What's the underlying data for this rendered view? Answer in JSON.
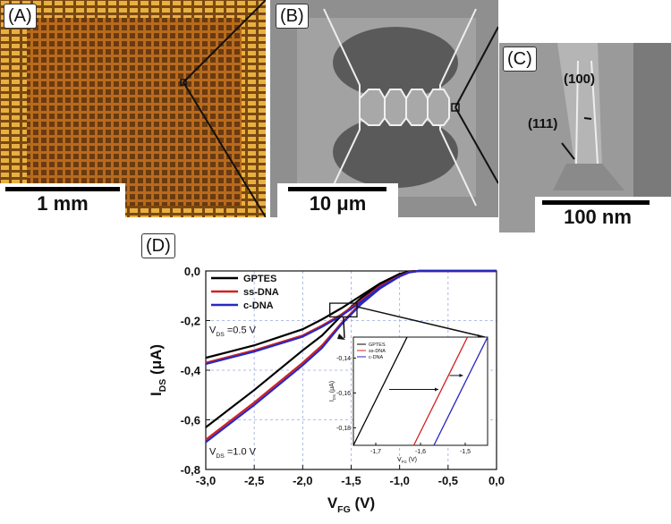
{
  "panels": {
    "a": {
      "label": "(A)",
      "scale": "1 mm"
    },
    "b": {
      "label": "(B)",
      "scale": "10 μm"
    },
    "c": {
      "label": "(C)",
      "scale": "100 nm",
      "facet1": "(100)",
      "facet2": "(111)"
    },
    "d": {
      "label": "(D)"
    }
  },
  "chart_data": [
    {
      "type": "line",
      "xlabel_main": "V",
      "xlabel_sub": "FG",
      "xlabel_unit": " (V)",
      "ylabel_main": "I",
      "ylabel_sub": "DS",
      "ylabel_unit": " (μA)",
      "xlim": [
        -3.0,
        0.0
      ],
      "ylim": [
        -0.8,
        0.0
      ],
      "xticks": [
        "-3,0",
        "-2,5",
        "-2,0",
        "-1,5",
        "-1,0",
        "-0,5",
        "0,0"
      ],
      "yticks": [
        "0,0",
        "-0,2",
        "-0,4",
        "-0,6",
        "-0,8"
      ],
      "grid": true,
      "legend": "top-left",
      "annotations": [
        {
          "text_main": "V",
          "text_sub": "DS",
          "text_rest": " =0.5 V"
        },
        {
          "text_main": "V",
          "text_sub": "DS",
          "text_rest": " =1.0 V"
        }
      ],
      "series": [
        {
          "name": "GPTES",
          "color": "#000000",
          "x": [
            -3.0,
            -2.5,
            -2.0,
            -1.8,
            -1.6,
            -1.4,
            -1.2,
            -1.0,
            -0.9,
            -0.8,
            0.0
          ],
          "curves": {
            "0.5V": [
              -0.35,
              -0.3,
              -0.235,
              -0.195,
              -0.15,
              -0.1,
              -0.05,
              -0.012,
              -0.002,
              0.0,
              0.0
            ],
            "1.0V": [
              -0.63,
              -0.48,
              -0.32,
              -0.26,
              -0.18,
              -0.11,
              -0.055,
              -0.013,
              -0.002,
              0.0,
              0.0
            ]
          }
        },
        {
          "name": "ss-DNA",
          "color": "#d42020",
          "x": [
            -3.0,
            -2.5,
            -2.0,
            -1.8,
            -1.6,
            -1.4,
            -1.2,
            -1.0,
            -0.9,
            -0.8,
            0.0
          ],
          "curves": {
            "0.5V": [
              -0.37,
              -0.32,
              -0.26,
              -0.22,
              -0.175,
              -0.12,
              -0.06,
              -0.02,
              -0.005,
              0.0,
              0.0
            ],
            "1.0V": [
              -0.68,
              -0.53,
              -0.37,
              -0.3,
              -0.21,
              -0.13,
              -0.065,
              -0.02,
              -0.004,
              0.0,
              0.0
            ]
          }
        },
        {
          "name": "c-DNA",
          "color": "#2828c0",
          "x": [
            -3.0,
            -2.5,
            -2.0,
            -1.8,
            -1.6,
            -1.4,
            -1.2,
            -1.0,
            -0.9,
            -0.8,
            0.0
          ],
          "curves": {
            "0.5V": [
              -0.375,
              -0.325,
              -0.265,
              -0.225,
              -0.18,
              -0.125,
              -0.065,
              -0.022,
              -0.006,
              0.0,
              0.0
            ],
            "1.0V": [
              -0.69,
              -0.54,
              -0.38,
              -0.31,
              -0.215,
              -0.135,
              -0.07,
              -0.022,
              -0.005,
              0.0,
              0.0
            ]
          }
        }
      ]
    },
    {
      "type": "line",
      "xlabel_main": "V",
      "xlabel_sub": "FG",
      "xlabel_unit": " (V)",
      "ylabel_main": "I",
      "ylabel_sub": "DS",
      "ylabel_unit": " (μA)",
      "xlim": [
        -1.75,
        -1.45
      ],
      "ylim": [
        -0.19,
        -0.128
      ],
      "xticks": [
        "-1,7",
        "-1,6",
        "-1,5"
      ],
      "xtick_vals": [
        -1.7,
        -1.6,
        -1.5
      ],
      "yticks": [
        "-0,14",
        "-0,16",
        "-0,18"
      ],
      "ytick_vals": [
        -0.14,
        -0.16,
        -0.18
      ],
      "legend": "top-left",
      "series": [
        {
          "name": "GPTES",
          "color": "#000000",
          "x": [
            -1.75,
            -1.63
          ],
          "y": [
            -0.19,
            -0.128
          ]
        },
        {
          "name": "ss-DNA",
          "color": "#d42020",
          "x": [
            -1.615,
            -1.495
          ],
          "y": [
            -0.19,
            -0.128
          ]
        },
        {
          "name": "c-DNA",
          "color": "#2828c0",
          "x": [
            -1.57,
            -1.45
          ],
          "y": [
            -0.19,
            -0.128
          ]
        }
      ]
    }
  ]
}
